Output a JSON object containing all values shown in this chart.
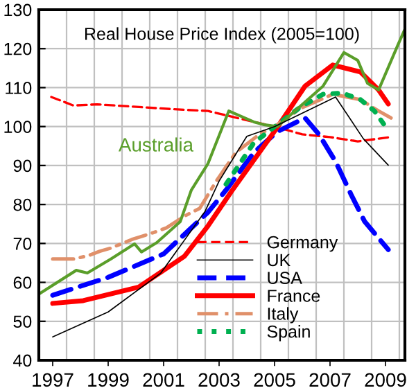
{
  "chart_data": {
    "type": "line",
    "title": "Real House Price Index (2005=100)",
    "xlim": [
      1996.5,
      2009.7
    ],
    "ylim": [
      40,
      130
    ],
    "yticks": [
      40,
      50,
      60,
      70,
      80,
      90,
      100,
      110,
      120,
      130
    ],
    "xticks": [
      {
        "value": 1996.5,
        "label": null
      },
      {
        "value": 1997.5,
        "label": null
      },
      {
        "value": 1998.5,
        "label": null
      },
      {
        "value": 1999.5,
        "label": null
      },
      {
        "value": 2000.5,
        "label": null
      },
      {
        "value": 2001.5,
        "label": null
      },
      {
        "value": 2002.5,
        "label": null
      },
      {
        "value": 2003.5,
        "label": null
      },
      {
        "value": 2004.5,
        "label": null
      },
      {
        "value": 2005.5,
        "label": null
      },
      {
        "value": 2006.5,
        "label": null
      },
      {
        "value": 2007.5,
        "label": null
      },
      {
        "value": 2008.5,
        "label": null
      },
      {
        "value": 2009.5,
        "label": null
      },
      1997,
      1999,
      2001,
      2003,
      2005,
      2007,
      2009
    ],
    "grid": true,
    "legend": "bottom right",
    "series": [
      {
        "name": "Germany",
        "color": "#ff0000",
        "line_style": "dashed",
        "x": [
          1996.95,
          1997.75,
          1998.6,
          2001.5,
          2002.6,
          2004.25,
          2005.0,
          2006.0,
          2007.0,
          2008.0,
          2009.2
        ],
        "values": [
          107.6,
          105.4,
          105.7,
          104.4,
          104.0,
          101.2,
          100,
          98.0,
          97.3,
          96.2,
          97.3
        ]
      },
      {
        "name": "UK",
        "color": "#000000",
        "line_style": "solid",
        "x": [
          1997,
          1999,
          2000.9,
          2002.5,
          2003.0,
          2004.0,
          2005.0,
          2007.2,
          2008.2,
          2009.1
        ],
        "values": [
          46,
          52.4,
          62.4,
          78.3,
          86,
          97.5,
          100,
          107.6,
          96.9,
          90.1
        ]
      },
      {
        "name": "USA",
        "color": "#0000ff",
        "line_style": "dashed",
        "x": [
          1997,
          1999,
          2001,
          2002.6,
          2003.25,
          2004.25,
          2005.1,
          2006.1,
          2006.6,
          2007.2,
          2007.6,
          2007.75,
          2008.25,
          2009.1
        ],
        "values": [
          56.7,
          61.3,
          67.3,
          78,
          83.7,
          93.3,
          98.7,
          102.2,
          98,
          91,
          85,
          82.7,
          75.6,
          68.4
        ]
      },
      {
        "name": "France",
        "color": "#ff0000",
        "line_style": "solid",
        "x": [
          1997,
          1998.1,
          2000.1,
          2001.75,
          2002.6,
          2003.45,
          2005.1,
          2006.1,
          2007.1,
          2008.1,
          2008.75,
          2009.1
        ],
        "values": [
          54.6,
          55.3,
          58.8,
          66.7,
          74.5,
          83.4,
          99.8,
          110.4,
          115.8,
          114,
          109.4,
          105.8
        ]
      },
      {
        "name": "Italy",
        "color": "#e0906a",
        "line_style": "dashdot",
        "x": [
          1997,
          1997.75,
          1998.3,
          1998.7,
          1999.1,
          1999.85,
          2000.6,
          2001.1,
          2001.75,
          2002.3,
          2002.9,
          2003.6,
          2004.45,
          2005.1,
          2005.95,
          2007.1,
          2008.1,
          2008.75,
          2009.2
        ],
        "values": [
          66,
          66,
          66.9,
          68,
          68.8,
          71,
          72.7,
          74,
          77,
          79,
          86,
          93.3,
          98,
          100.5,
          104.7,
          108.3,
          106.9,
          104,
          102.2
        ]
      },
      {
        "name": "Spain",
        "color": "#00b050",
        "line_style": "dotted",
        "x": [
          2003.25,
          2004.25,
          2005.1,
          2005.95,
          2006.75,
          2007.45,
          2008.1,
          2008.6,
          2008.95
        ],
        "values": [
          85.2,
          95.8,
          100.5,
          105.1,
          108.3,
          108.6,
          106.9,
          104,
          100.5
        ]
      },
      {
        "name": "Australia",
        "color": "#5a9e2a",
        "line_style": "solid",
        "x": [
          1996.5,
          1997.85,
          1998.25,
          1999.1,
          1999.95,
          2000.2,
          2000.75,
          2001.6,
          2002.0,
          2002.6,
          2003.35,
          2004.25,
          2004.6,
          2005.1,
          2006.75,
          2007.5,
          2008.0,
          2008.35,
          2008.75,
          2009.45,
          2009.7
        ],
        "values": [
          57,
          63.1,
          62.4,
          66,
          69.9,
          67.8,
          70.2,
          75.6,
          83.7,
          90.5,
          104,
          101.2,
          100.5,
          100,
          110.4,
          119,
          117,
          111.1,
          109.4,
          121,
          125
        ]
      }
    ]
  }
}
